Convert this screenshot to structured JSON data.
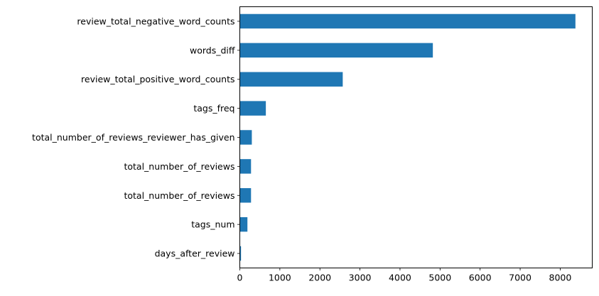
{
  "chart_data": {
    "type": "bar",
    "orientation": "horizontal",
    "categories": [
      "review_total_negative_word_counts",
      "words_diff",
      "review_total_positive_word_counts",
      "tags_freq",
      "total_number_of_reviews_reviewer_has_given",
      "total_number_of_reviews",
      "total_number_of_reviews",
      "tags_num",
      "days_after_review"
    ],
    "values": [
      8380,
      4820,
      2570,
      650,
      300,
      280,
      280,
      190,
      30
    ],
    "title": "",
    "xlabel": "",
    "ylabel": "",
    "xlim": [
      0,
      8800
    ],
    "xticks": [
      "0",
      "1000",
      "2000",
      "3000",
      "4000",
      "5000",
      "6000",
      "7000",
      "8000"
    ],
    "grid": false,
    "bar_color": "#1f77b4"
  }
}
